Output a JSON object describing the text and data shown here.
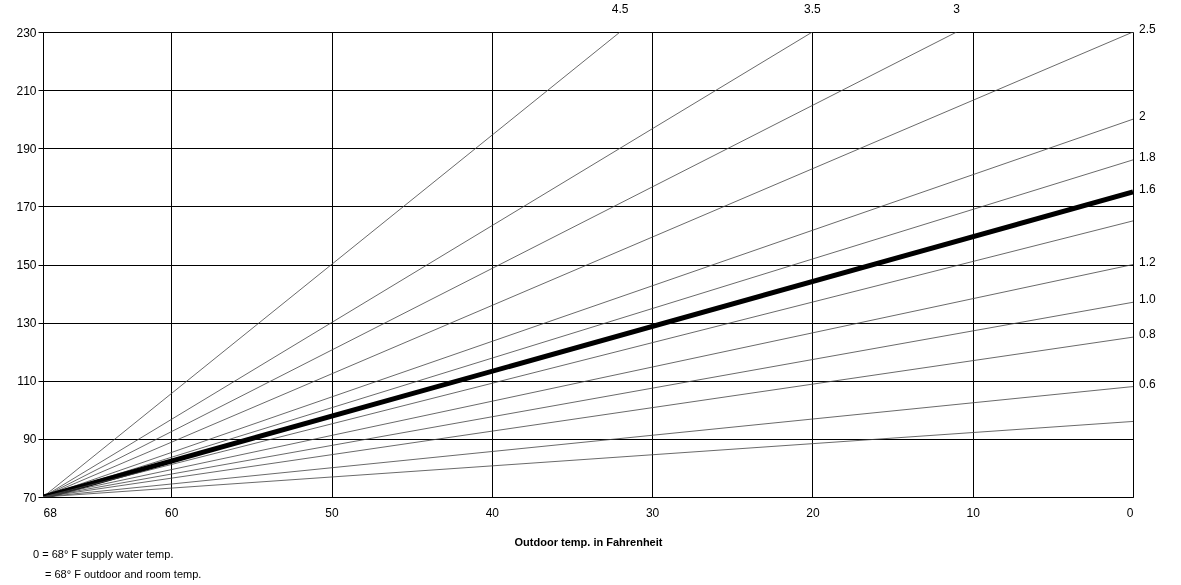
{
  "chart_data": {
    "type": "line",
    "xlabel": "Outdoor temp. in Fahrenheit",
    "annotations": [
      "0 = 68°  F supply water temp.",
      "= 68°  F outdoor and room temp."
    ],
    "series": [
      {
        "name": "4.5",
        "color": "#444444",
        "x": [
          68,
          32
        ],
        "values": [
          70,
          230
        ]
      },
      {
        "name": "3.5",
        "color": "#444444",
        "x": [
          68,
          20
        ],
        "values": [
          70,
          230
        ]
      },
      {
        "name": "3",
        "color": "#444444",
        "x": [
          68,
          11
        ],
        "values": [
          70,
          230
        ]
      },
      {
        "name": "2.5",
        "color": "#444444",
        "x": [
          68,
          0
        ],
        "values": [
          70,
          230
        ]
      },
      {
        "name": "2",
        "color": "#444444",
        "x": [
          68,
          0
        ],
        "values": [
          70,
          200
        ]
      },
      {
        "name": "1.8",
        "color": "#444444",
        "x": [
          68,
          0
        ],
        "values": [
          70,
          186
        ]
      },
      {
        "name": "1.6",
        "color": "#000000",
        "x": [
          68,
          0
        ],
        "values": [
          70,
          175
        ]
      },
      {
        "color": "#444444",
        "x": [
          68,
          0
        ],
        "values": [
          70,
          165
        ]
      },
      {
        "name": "1.2",
        "color": "#444444",
        "x": [
          68,
          0
        ],
        "values": [
          70,
          150
        ]
      },
      {
        "name": "1.0",
        "color": "#444444",
        "x": [
          68,
          0
        ],
        "values": [
          70,
          137
        ]
      },
      {
        "name": "0.8",
        "color": "#444444",
        "x": [
          68,
          0
        ],
        "values": [
          70,
          125
        ]
      },
      {
        "name": "0.6",
        "color": "#444444",
        "x": [
          68,
          0
        ],
        "values": [
          70,
          108
        ]
      },
      {
        "color": "#444444",
        "x": [
          68,
          0
        ],
        "values": [
          70,
          96
        ]
      }
    ],
    "xlim": [
      68,
      0
    ],
    "xticks": [
      68,
      60,
      50,
      40,
      30,
      20,
      10,
      0
    ],
    "ylim": [
      70,
      230
    ],
    "yticks": [
      70,
      90,
      110,
      130,
      150,
      170,
      190,
      210,
      230
    ],
    "grid": true,
    "marker": "none",
    "line_style": "solid"
  }
}
